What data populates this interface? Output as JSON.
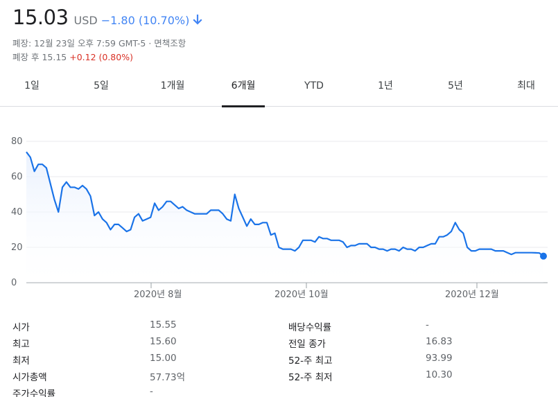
{
  "quote": {
    "price": "15.03",
    "currency": "USD",
    "change": "−1.80 (10.70%)",
    "direction_icon": "arrow-down-icon",
    "change_color": "#4285f4",
    "close_info": "폐장: 12월 23일 오후 7:59 GMT-5 · 면책조항",
    "after_hours_label": "폐장 후 15.15",
    "after_hours_change": "+0.12 (0.80%)",
    "after_hours_color": "#d93025"
  },
  "tabs": [
    {
      "label": "1일"
    },
    {
      "label": "5일"
    },
    {
      "label": "1개월"
    },
    {
      "label": "6개월",
      "active": true
    },
    {
      "label": "YTD"
    },
    {
      "label": "1년"
    },
    {
      "label": "5년"
    },
    {
      "label": "최대"
    }
  ],
  "chart_data": {
    "type": "area",
    "y_ticks": [
      "0",
      "20",
      "40",
      "60",
      "80"
    ],
    "ylim": [
      0,
      80
    ],
    "x_tick_labels": [
      "2020년 8월",
      "2020년 10월",
      "2020년 12월"
    ],
    "grid": true,
    "line_color": "#1a73e8",
    "series": [
      {
        "values": [
          74,
          71,
          63,
          67,
          67,
          65,
          56,
          47,
          40,
          54,
          57,
          54,
          54,
          53,
          55,
          53,
          49,
          38,
          40,
          36,
          34,
          30,
          33,
          33,
          31,
          29,
          30,
          37,
          39,
          35,
          36,
          37,
          45,
          41,
          43,
          46,
          46,
          44,
          42,
          43,
          41,
          40,
          39,
          39,
          39,
          39,
          41,
          41,
          41,
          39,
          36,
          35,
          50,
          42,
          37,
          32,
          36,
          33,
          33,
          34,
          34,
          27,
          28,
          20,
          19,
          19,
          19,
          18,
          20,
          24,
          24,
          24,
          23,
          26,
          25,
          25,
          24,
          24,
          24,
          23,
          20,
          21,
          21,
          22,
          22,
          22,
          20,
          20,
          19,
          19,
          18,
          19,
          19,
          18,
          20,
          19,
          19,
          18,
          20,
          20,
          21,
          22,
          22,
          26,
          26,
          27,
          29,
          34,
          30,
          28,
          20,
          18,
          18,
          19,
          19,
          19,
          19,
          18,
          18,
          18,
          17,
          16,
          17,
          17,
          17,
          17,
          17,
          16.9,
          16.8,
          15.03
        ]
      }
    ]
  },
  "stats": {
    "left": [
      {
        "label": "시가",
        "value": "15.55"
      },
      {
        "label": "최고",
        "value": "15.60"
      },
      {
        "label": "최저",
        "value": "15.00"
      },
      {
        "label": "시가총액",
        "value": "57.73억"
      },
      {
        "label": "주가수익률",
        "value": "-"
      }
    ],
    "right": [
      {
        "label": "배당수익률",
        "value": "-"
      },
      {
        "label": "전일 종가",
        "value": "16.83"
      },
      {
        "label": "52-주 최고",
        "value": "93.99"
      },
      {
        "label": "52-주 최저",
        "value": "10.30"
      }
    ]
  }
}
